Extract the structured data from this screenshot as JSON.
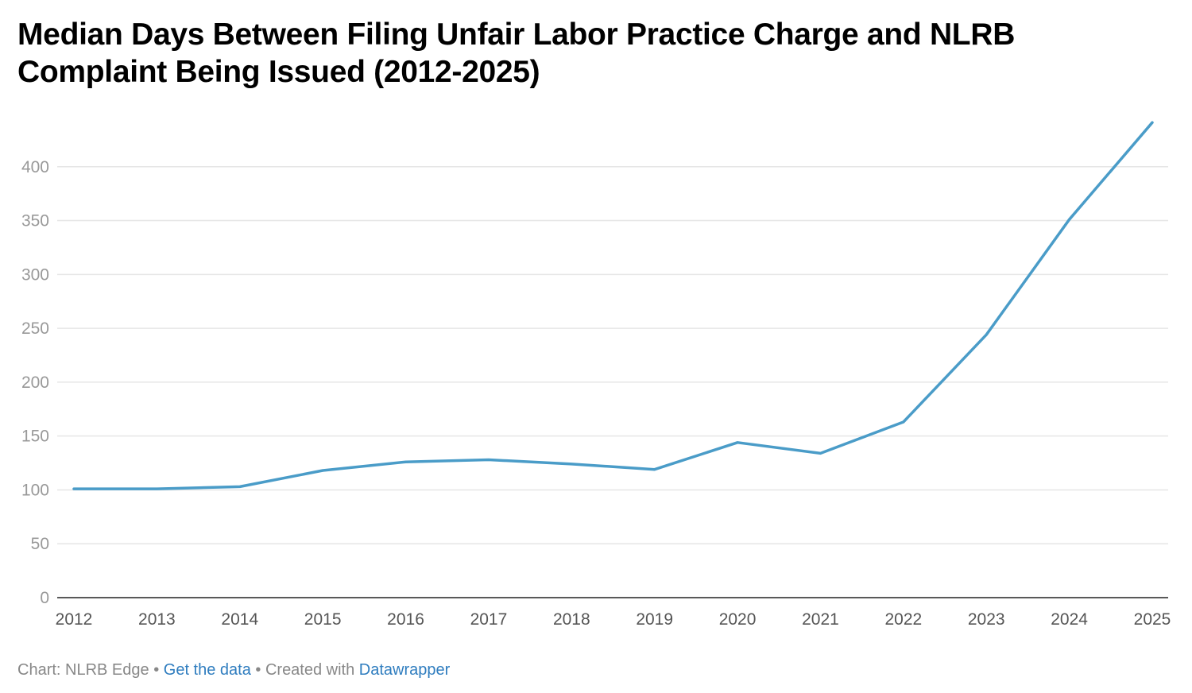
{
  "chart_data": {
    "type": "line",
    "title": "Median Days Between Filing Unfair Labor Practice Charge and NLRB Complaint Being Issued (2012-2025)",
    "xlabel": "",
    "ylabel": "",
    "x": [
      "2012",
      "2013",
      "2014",
      "2015",
      "2016",
      "2017",
      "2018",
      "2019",
      "2020",
      "2021",
      "2022",
      "2023",
      "2024",
      "2025"
    ],
    "series": [
      {
        "values": [
          101,
          101,
          103,
          118,
          126,
          128,
          124,
          119,
          144,
          134,
          163,
          244,
          351,
          441
        ]
      }
    ],
    "yticks": [
      0,
      50,
      100,
      150,
      200,
      250,
      300,
      350,
      400
    ],
    "ylim": [
      0,
      450
    ],
    "grid": true,
    "line_color": "#4a9cc8"
  },
  "footer": {
    "source": "Chart: NLRB Edge",
    "sep1": " • ",
    "get_data": "Get the data",
    "sep2": " • Created with ",
    "tool": "Datawrapper"
  }
}
